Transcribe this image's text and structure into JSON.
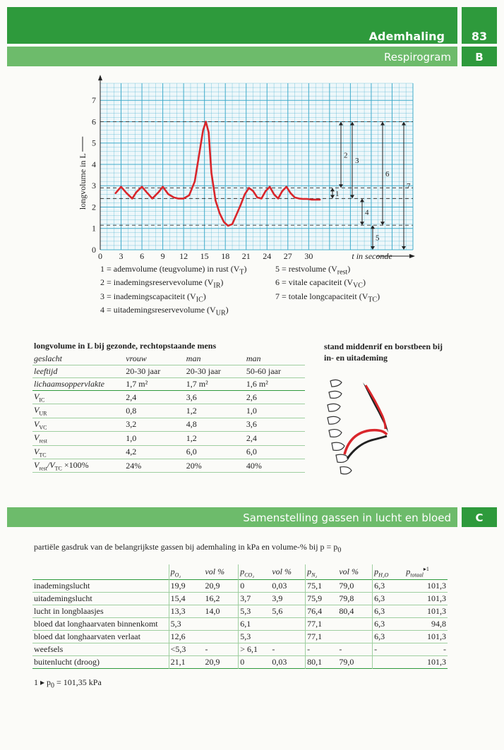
{
  "header": {
    "title": "Ademhaling",
    "page": "83",
    "subtitle": "Respirogram",
    "section": "B"
  },
  "chart_data": {
    "type": "line",
    "ylabel": "longvolume in L",
    "xlabel": "t in seconde",
    "x_ticks": [
      "0",
      "3",
      "6",
      "9",
      "12",
      "15",
      "18",
      "21",
      "24",
      "27",
      "30"
    ],
    "y_ticks": [
      "0",
      "1",
      "2",
      "3",
      "4",
      "5",
      "6",
      "7"
    ],
    "xlim": [
      0,
      45
    ],
    "ylim": [
      0,
      7.8
    ],
    "dashed_levels": [
      6.0,
      2.9,
      2.4,
      1.15
    ],
    "series": [
      {
        "x": [
          2.2,
          3,
          3.8,
          4.6,
          5.2,
          6,
          6.8,
          7.5,
          8.4,
          9,
          9.8,
          10.6,
          11.2,
          12,
          12.8,
          13.6,
          14.2,
          14.8,
          15.2,
          15.6,
          16,
          16.6,
          17.2,
          17.8,
          18.4,
          19,
          19.6,
          20.2,
          20.8,
          21.4,
          22,
          22.6,
          23.2,
          23.8,
          24.4,
          25,
          25.6,
          26.2,
          26.8,
          27.4,
          28,
          28.6,
          29.2,
          29.8,
          30.4,
          31,
          31.6
        ],
        "y": [
          2.65,
          2.95,
          2.65,
          2.4,
          2.7,
          2.95,
          2.65,
          2.4,
          2.7,
          2.95,
          2.6,
          2.45,
          2.4,
          2.4,
          2.55,
          3.2,
          4.4,
          5.6,
          6.0,
          5.5,
          3.6,
          2.3,
          1.7,
          1.3,
          1.12,
          1.2,
          1.65,
          2.1,
          2.6,
          2.9,
          2.75,
          2.45,
          2.4,
          2.75,
          2.95,
          2.6,
          2.4,
          2.75,
          2.95,
          2.65,
          2.45,
          2.4,
          2.38,
          2.38,
          2.35,
          2.35,
          2.35
        ]
      }
    ],
    "markers": [
      {
        "label": "1",
        "lo": 2.4,
        "hi": 2.9
      },
      {
        "label": "2",
        "lo": 2.9,
        "hi": 6.0
      },
      {
        "label": "3",
        "lo": 2.4,
        "hi": 6.0
      },
      {
        "label": "4",
        "lo": 1.15,
        "hi": 2.4
      },
      {
        "label": "5",
        "lo": 0,
        "hi": 1.15
      },
      {
        "label": "6",
        "lo": 1.15,
        "hi": 6.0
      },
      {
        "label": "7",
        "lo": 0,
        "hi": 6.0
      }
    ]
  },
  "legend_left": [
    "1 = ademvolume (teugvolume) in rust (V",
    "2 = inademingsreservevolume (V",
    "3 = inademingscapaciteit (V",
    "4 = uitademingsreservevolume (V"
  ],
  "legend_left_sub": [
    "T",
    "IR",
    "IC",
    "UR"
  ],
  "legend_right": [
    "5 = restvolume (V",
    "6 = vitale capaciteit (V",
    "7 = totale longcapaciteit (V"
  ],
  "legend_right_sub": [
    "rest",
    "VC",
    "TC"
  ],
  "lung_table": {
    "title": "longvolume in L bij gezonde, rechtopstaande mens",
    "head": [
      [
        "geslacht",
        "vrouw",
        "man",
        "man"
      ],
      [
        "leeftijd",
        "20-30 jaar",
        "20-30 jaar",
        "50-60 jaar"
      ],
      [
        "lichaamsoppervlakte",
        "1,7 m²",
        "1,7 m²",
        "1,6 m²"
      ]
    ],
    "rows": [
      {
        "sym": "V",
        "sub": "IC",
        "vals": [
          "2,4",
          "3,6",
          "2,6"
        ]
      },
      {
        "sym": "V",
        "sub": "UR",
        "vals": [
          "0,8",
          "1,2",
          "1,0"
        ]
      },
      {
        "sym": "V",
        "sub": "VC",
        "vals": [
          "3,2",
          "4,8",
          "3,6"
        ]
      },
      {
        "sym": "V",
        "sub": "rest",
        "vals": [
          "1,0",
          "1,2",
          "2,4"
        ]
      },
      {
        "sym": "V",
        "sub": "TC",
        "vals": [
          "4,2",
          "6,0",
          "6,0"
        ]
      },
      {
        "sym": "V",
        "sub": "rest",
        "vals": [
          "24%",
          "20%",
          "40%"
        ]
      }
    ],
    "last_row_suffix": "/V",
    "last_row_sub2": "TC",
    "last_row_tail": " ×100%"
  },
  "figure_caption": [
    "stand middenrif en borstbeen bij",
    "in- en uitademing"
  ],
  "section_c": {
    "title": "Samenstelling gassen in lucht en bloed",
    "letter": "C"
  },
  "gas_intro": "partiële gasdruk van de belangrijkste gassen bij ademhaling in kPa en volume-% bij p = p",
  "gas_intro_sub": "0",
  "gas_table": {
    "headers": [
      "p",
      "vol %",
      "p",
      "vol %",
      "p",
      "vol %",
      "p",
      "p"
    ],
    "header_subs": [
      "O₂",
      "",
      "CO₂",
      "",
      "N₂",
      "",
      "H₂O",
      "totaal"
    ],
    "footnote_mark": "▸1",
    "rows": [
      [
        "inademingslucht",
        "19,9",
        "20,9",
        "0",
        "0,03",
        "75,1",
        "79,0",
        "6,3",
        "101,3"
      ],
      [
        "uitademingslucht",
        "15,4",
        "16,2",
        "3,7",
        "3,9",
        "75,9",
        "79,8",
        "6,3",
        "101,3"
      ],
      [
        "lucht in longblaasjes",
        "13,3",
        "14,0",
        "5,3",
        "5,6",
        "76,4",
        "80,4",
        "6,3",
        "101,3"
      ],
      [
        "bloed dat longhaarvaten binnenkomt",
        "5,3",
        "",
        "6,1",
        "",
        "77,1",
        "",
        "6,3",
        "94,8"
      ],
      [
        "bloed dat longhaarvaten verlaat",
        "12,6",
        "",
        "5,3",
        "",
        "77,1",
        "",
        "6,3",
        "101,3"
      ],
      [
        "weefsels",
        "<5,3",
        "-",
        "> 6,1",
        "-",
        "-",
        "-",
        "-",
        "-"
      ],
      [
        "buitenlucht (droog)",
        "21,1",
        "20,9",
        "0",
        "0,03",
        "80,1",
        "79,0",
        "",
        "101,3"
      ]
    ]
  },
  "footnote": "1 ▸ p",
  "footnote_sub": "0",
  "footnote_tail": " = 101,35 kPa",
  "colors": {
    "green_dark": "#2e9a3c",
    "green_light": "#6dbb6b",
    "grid": "#38a9c9",
    "curve": "#d9262b"
  }
}
